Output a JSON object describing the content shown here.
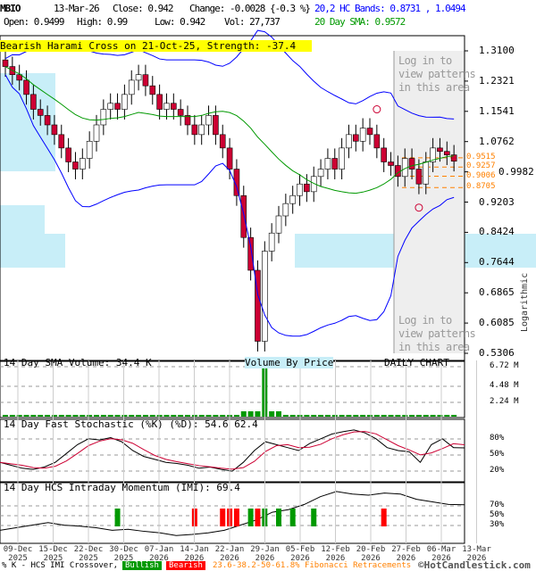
{
  "header": {
    "symbol": "MBIO",
    "date": "13-Mar-26",
    "close": "Close: 0.942",
    "change": "Change: -0.0028 {-0.3 %}",
    "open": "Open: 0.9499",
    "high": "High: 0.99",
    "low": "Low: 0.942",
    "volume": "Vol: 27,737",
    "bands": "20,2 HC Bands: 0.8731 , 1.0494",
    "sma": "20 Day SMA: 0.9572"
  },
  "pattern_banner": "Bearish Harami Cross on 21-Oct-25, Strength: -37.4",
  "login_prompt": "Log in to view patterns in this area",
  "login_prompt_2": "Log in to view patterns in this area",
  "log_label": "Logarithmic",
  "panels": {
    "volume_title": "14 Day SMA Volume: 34.4 K",
    "vbp": "Volume By Price",
    "daily": "DAILY CHART",
    "stoch_title": "14 Day Fast Stochastic (%K) (%D): 54.6  62.4",
    "imi_title": "14 Day HCS Intraday Momentum (IMI): 69.4"
  },
  "legend": {
    "crossover": "% K - HCS IMI Crossover,",
    "bullish": "Bullish",
    "bearish": "Bearish",
    "fib": "23.6-38.2-50-61.8% Fibonacci Retracements",
    "copyright": "©HotCandlestick.com"
  },
  "colors": {
    "bullish": "#009900",
    "bearish": "#ff0000",
    "bands": "#0000ff",
    "sma": "#009900",
    "fib": "#ff8000",
    "candle_down": "#cc0033"
  },
  "chart_data": {
    "type": "candlestick",
    "y_scale": "log",
    "ylim": [
      0.5306,
      1.31
    ],
    "price_ticks": [
      "1.3100",
      "1.2321",
      "1.1541",
      "1.0762",
      "0.9982",
      "0.9203",
      "0.8424",
      "0.7644",
      "0.6865",
      "0.6085",
      "0.5306"
    ],
    "fib_levels": [
      "0.9515",
      "0.9257",
      "0.9006",
      "0.8705"
    ],
    "volume_ticks": [
      "6.72 M",
      "4.48 M",
      "2.24 M"
    ],
    "stoch_ticks": [
      "80%",
      "50%",
      "20%"
    ],
    "imi_ticks": [
      "70%",
      "50%",
      "30%"
    ],
    "x_ticks": [
      [
        "09-Dec",
        "2025"
      ],
      [
        "15-Dec",
        "2025"
      ],
      [
        "22-Dec",
        "2025"
      ],
      [
        "30-Dec",
        "2025"
      ],
      [
        "07-Jan",
        "2026"
      ],
      [
        "14-Jan",
        "2026"
      ],
      [
        "22-Jan",
        "2026"
      ],
      [
        "29-Jan",
        "2026"
      ],
      [
        "05-Feb",
        "2026"
      ],
      [
        "12-Feb",
        "2026"
      ],
      [
        "20-Feb",
        "2026"
      ],
      [
        "27-Feb",
        "2026"
      ],
      [
        "06-Mar",
        "2026"
      ],
      [
        "13-Mar",
        "2026"
      ]
    ],
    "closes": [
      1.25,
      1.22,
      1.2,
      1.15,
      1.1,
      1.08,
      1.05,
      1.02,
      0.98,
      0.94,
      0.92,
      0.95,
      1.0,
      1.05,
      1.1,
      1.12,
      1.1,
      1.15,
      1.2,
      1.22,
      1.18,
      1.15,
      1.1,
      1.12,
      1.1,
      1.08,
      1.05,
      1.02,
      1.05,
      1.08,
      1.02,
      0.98,
      0.92,
      0.85,
      0.75,
      0.68,
      0.55,
      0.72,
      0.76,
      0.8,
      0.83,
      0.85,
      0.88,
      0.86,
      0.9,
      0.92,
      0.95,
      0.92,
      0.98,
      1.02,
      1.0,
      1.04,
      1.02,
      0.98,
      0.94,
      0.93,
      0.9,
      0.95,
      0.92,
      0.88,
      0.94,
      0.98,
      0.97,
      0.96,
      0.942
    ],
    "stoch_k": [
      30,
      25,
      20,
      18,
      22,
      30,
      45,
      60,
      70,
      68,
      72,
      65,
      50,
      40,
      35,
      30,
      28,
      25,
      20,
      22,
      18,
      15,
      30,
      50,
      65,
      60,
      55,
      50,
      62,
      70,
      78,
      82,
      85,
      80,
      70,
      55,
      50,
      48,
      30,
      60,
      70,
      55,
      54.6
    ],
    "imi": [
      20,
      25,
      30,
      35,
      30,
      28,
      25,
      20,
      22,
      18,
      15,
      10,
      12,
      15,
      20,
      30,
      40,
      55,
      60,
      70,
      85,
      95,
      90,
      88,
      92,
      90,
      80,
      75,
      70,
      69.4
    ]
  }
}
